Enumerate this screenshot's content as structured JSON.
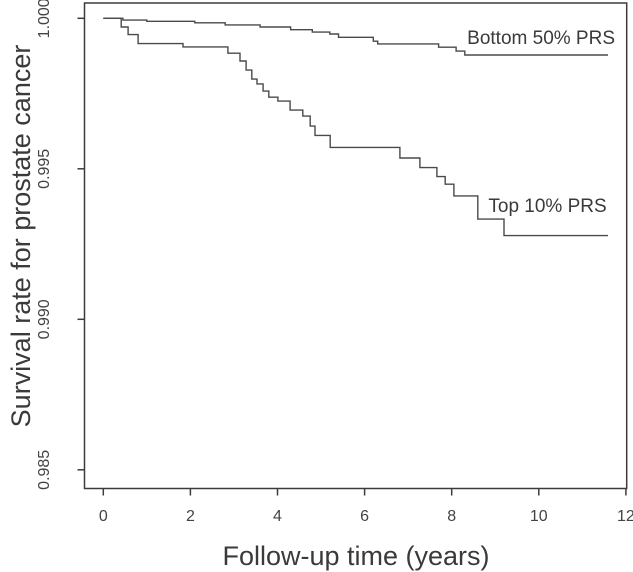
{
  "figure": {
    "kind": "kaplan-meier-survival-plot",
    "background": "#ffffff",
    "line_color": "#4a4a4a",
    "text_color": "#3a3a3a"
  },
  "chart_data": {
    "type": "line",
    "subtype": "step-survival-curves",
    "title": "",
    "xlabel": "Follow-up time (years)",
    "ylabel": "Survival rate for prostate cancer",
    "xlim": [
      -0.45,
      12.15
    ],
    "ylim": [
      0.9845,
      1.0005
    ],
    "grid": false,
    "legend_position": "inline-annotations",
    "xticks": [
      0,
      2,
      4,
      6,
      8,
      10,
      12
    ],
    "xtick_labels": [
      "0",
      "2",
      "4",
      "6",
      "8",
      "10",
      "12"
    ],
    "yticks": [
      0.985,
      0.99,
      0.995,
      1.0
    ],
    "ytick_labels": [
      "0.985",
      "0.990",
      "0.995",
      "1.000"
    ],
    "series": [
      {
        "name": "Bottom 50% PRS",
        "label_anchor": {
          "t": 11.75,
          "s": 0.99915,
          "align": "end"
        },
        "steps": [
          [
            0.0,
            1.0
          ],
          [
            0.45,
            0.99994
          ],
          [
            1.0,
            0.9999
          ],
          [
            2.1,
            0.99985
          ],
          [
            2.8,
            0.99978
          ],
          [
            3.6,
            0.99971
          ],
          [
            4.3,
            0.99962
          ],
          [
            4.8,
            0.99954
          ],
          [
            5.2,
            0.99948
          ],
          [
            5.4,
            0.99937
          ],
          [
            6.2,
            0.99924
          ],
          [
            6.3,
            0.99915
          ],
          [
            7.7,
            0.99904
          ],
          [
            8.1,
            0.99891
          ],
          [
            8.3,
            0.99878
          ],
          [
            11.59,
            0.99878
          ]
        ]
      },
      {
        "name": "Top 10% PRS",
        "label_anchor": {
          "t": 11.56,
          "s": 0.99357,
          "align": "end"
        },
        "steps": [
          [
            0.0,
            1.0
          ],
          [
            0.41,
            0.99971
          ],
          [
            0.57,
            0.99946
          ],
          [
            0.8,
            0.99916
          ],
          [
            1.83,
            0.99905
          ],
          [
            2.86,
            0.99884
          ],
          [
            3.14,
            0.99858
          ],
          [
            3.28,
            0.99828
          ],
          [
            3.41,
            0.99798
          ],
          [
            3.53,
            0.99782
          ],
          [
            3.67,
            0.99758
          ],
          [
            3.8,
            0.99738
          ],
          [
            4.01,
            0.99725
          ],
          [
            4.29,
            0.99695
          ],
          [
            4.58,
            0.99675
          ],
          [
            4.75,
            0.99642
          ],
          [
            4.86,
            0.99611
          ],
          [
            5.21,
            0.99571
          ],
          [
            6.81,
            0.99536
          ],
          [
            7.27,
            0.99504
          ],
          [
            7.66,
            0.99474
          ],
          [
            7.85,
            0.99449
          ],
          [
            8.05,
            0.9941
          ],
          [
            8.6,
            0.99333
          ],
          [
            9.2,
            0.99278
          ],
          [
            11.59,
            0.99278
          ]
        ]
      }
    ]
  }
}
